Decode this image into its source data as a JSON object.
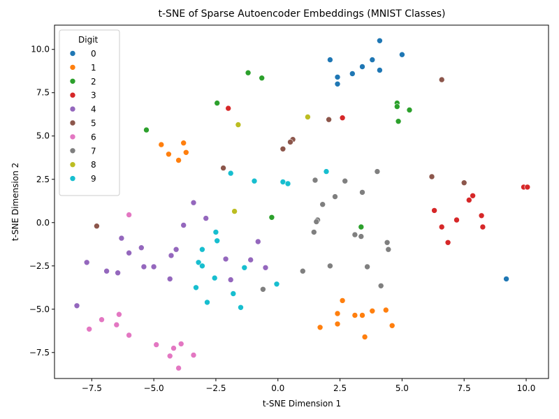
{
  "chart_data": {
    "type": "scatter",
    "title": "t-SNE of Sparse Autoencoder Embeddings (MNIST Classes)",
    "xlabel": "t-SNE Dimension 1",
    "ylabel": "t-SNE Dimension 2",
    "xlim": [
      -9.0,
      10.9
    ],
    "ylim": [
      -9.0,
      11.4
    ],
    "xticks": [
      -7.5,
      -5.0,
      -2.5,
      0.0,
      2.5,
      5.0,
      7.5,
      10.0
    ],
    "xtick_labels": [
      "−7.5",
      "−5.0",
      "−2.5",
      "0.0",
      "2.5",
      "5.0",
      "7.5",
      "10.0"
    ],
    "yticks": [
      -7.5,
      -5.0,
      -2.5,
      0.0,
      2.5,
      5.0,
      7.5,
      10.0
    ],
    "ytick_labels": [
      "−7.5",
      "−5.0",
      "−2.5",
      "0.0",
      "2.5",
      "5.0",
      "7.5",
      "10.0"
    ],
    "grid": false,
    "legend": {
      "title": "Digit",
      "placement": "top-left"
    },
    "series": [
      {
        "name": "0",
        "color": "#1f77b4",
        "points": [
          [
            4.1,
            10.5
          ],
          [
            5.0,
            9.7
          ],
          [
            2.1,
            9.4
          ],
          [
            3.8,
            9.4
          ],
          [
            3.4,
            9.0
          ],
          [
            3.0,
            8.6
          ],
          [
            4.1,
            8.8
          ],
          [
            2.4,
            8.4
          ],
          [
            2.4,
            8.0
          ],
          [
            9.2,
            -3.25
          ]
        ]
      },
      {
        "name": "1",
        "color": "#ff7f0e",
        "points": [
          [
            -4.7,
            4.5
          ],
          [
            -3.8,
            4.6
          ],
          [
            -4.4,
            3.95
          ],
          [
            -3.7,
            4.05
          ],
          [
            -4.0,
            3.6
          ],
          [
            2.6,
            -4.5
          ],
          [
            2.4,
            -5.25
          ],
          [
            3.1,
            -5.35
          ],
          [
            3.4,
            -5.35
          ],
          [
            3.8,
            -5.1
          ],
          [
            4.35,
            -5.05
          ],
          [
            2.4,
            -5.85
          ],
          [
            1.7,
            -6.05
          ],
          [
            4.6,
            -5.95
          ],
          [
            3.5,
            -6.6
          ]
        ]
      },
      {
        "name": "2",
        "color": "#2ca02c",
        "points": [
          [
            -1.2,
            8.65
          ],
          [
            -0.65,
            8.35
          ],
          [
            -2.45,
            6.9
          ],
          [
            4.8,
            6.9
          ],
          [
            4.8,
            6.7
          ],
          [
            5.3,
            6.5
          ],
          [
            4.85,
            5.85
          ],
          [
            -5.3,
            5.35
          ],
          [
            -0.25,
            0.3
          ],
          [
            3.35,
            -0.25
          ]
        ]
      },
      {
        "name": "3",
        "color": "#d62728",
        "points": [
          [
            -2.0,
            6.6
          ],
          [
            2.6,
            6.05
          ],
          [
            9.9,
            2.05
          ],
          [
            10.05,
            2.05
          ],
          [
            7.85,
            1.55
          ],
          [
            7.7,
            1.3
          ],
          [
            6.3,
            0.7
          ],
          [
            8.2,
            0.4
          ],
          [
            7.2,
            0.15
          ],
          [
            6.6,
            -0.25
          ],
          [
            8.25,
            -0.25
          ],
          [
            6.85,
            -1.15
          ]
        ]
      },
      {
        "name": "4",
        "color": "#9467bd",
        "points": [
          [
            -3.4,
            1.15
          ],
          [
            -2.9,
            0.25
          ],
          [
            -3.8,
            -0.15
          ],
          [
            -6.3,
            -0.9
          ],
          [
            -0.8,
            -1.1
          ],
          [
            -5.5,
            -1.45
          ],
          [
            -4.1,
            -1.55
          ],
          [
            -6.0,
            -1.75
          ],
          [
            -4.3,
            -1.9
          ],
          [
            -2.1,
            -2.1
          ],
          [
            -1.1,
            -2.15
          ],
          [
            -7.7,
            -2.3
          ],
          [
            -5.4,
            -2.55
          ],
          [
            -5.0,
            -2.55
          ],
          [
            -0.5,
            -2.6
          ],
          [
            -6.9,
            -2.8
          ],
          [
            -6.45,
            -2.9
          ],
          [
            -4.35,
            -3.25
          ],
          [
            -1.9,
            -3.3
          ],
          [
            -8.1,
            -4.8
          ]
        ]
      },
      {
        "name": "5",
        "color": "#8c564b",
        "points": [
          [
            6.6,
            8.25
          ],
          [
            2.05,
            5.95
          ],
          [
            0.6,
            4.8
          ],
          [
            0.5,
            4.65
          ],
          [
            0.2,
            4.25
          ],
          [
            -2.2,
            3.15
          ],
          [
            6.2,
            2.65
          ],
          [
            7.5,
            2.3
          ],
          [
            -7.3,
            -0.2
          ]
        ]
      },
      {
        "name": "6",
        "color": "#e377c2",
        "points": [
          [
            -6.0,
            0.45
          ],
          [
            -6.4,
            -5.3
          ],
          [
            -7.1,
            -5.6
          ],
          [
            -6.5,
            -5.9
          ],
          [
            -7.6,
            -6.15
          ],
          [
            -6.0,
            -6.5
          ],
          [
            -4.9,
            -7.05
          ],
          [
            -3.9,
            -7.0
          ],
          [
            -4.2,
            -7.25
          ],
          [
            -3.4,
            -7.65
          ],
          [
            -4.35,
            -7.7
          ],
          [
            -4.0,
            -8.4
          ]
        ]
      },
      {
        "name": "7",
        "color": "#7f7f7f",
        "points": [
          [
            1.5,
            2.45
          ],
          [
            2.7,
            2.4
          ],
          [
            4.0,
            2.95
          ],
          [
            2.3,
            1.5
          ],
          [
            3.4,
            1.75
          ],
          [
            1.8,
            1.05
          ],
          [
            1.6,
            0.15
          ],
          [
            1.55,
            0.05
          ],
          [
            1.45,
            -0.55
          ],
          [
            3.1,
            -0.7
          ],
          [
            3.35,
            -0.8
          ],
          [
            4.4,
            -1.15
          ],
          [
            4.45,
            -1.55
          ],
          [
            2.1,
            -2.5
          ],
          [
            3.6,
            -2.55
          ],
          [
            1.0,
            -2.8
          ],
          [
            4.15,
            -3.65
          ],
          [
            -0.6,
            -3.85
          ]
        ]
      },
      {
        "name": "8",
        "color": "#bcbd22",
        "points": [
          [
            1.2,
            6.1
          ],
          [
            -1.6,
            5.65
          ],
          [
            -1.75,
            0.65
          ]
        ]
      },
      {
        "name": "9",
        "color": "#17becf",
        "points": [
          [
            1.95,
            2.95
          ],
          [
            -1.9,
            2.85
          ],
          [
            -0.95,
            2.4
          ],
          [
            0.2,
            2.35
          ],
          [
            0.4,
            2.25
          ],
          [
            -2.5,
            -0.55
          ],
          [
            -2.45,
            -1.05
          ],
          [
            -3.05,
            -1.55
          ],
          [
            -3.2,
            -2.3
          ],
          [
            -3.05,
            -2.5
          ],
          [
            -1.35,
            -2.6
          ],
          [
            -2.55,
            -3.2
          ],
          [
            -0.05,
            -3.55
          ],
          [
            -3.3,
            -3.75
          ],
          [
            -1.8,
            -4.1
          ],
          [
            -2.85,
            -4.6
          ],
          [
            -1.5,
            -4.9
          ]
        ]
      }
    ]
  }
}
